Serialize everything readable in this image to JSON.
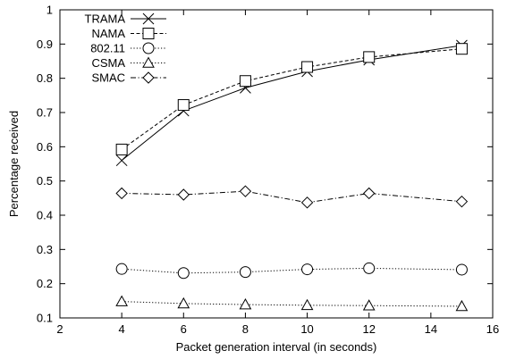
{
  "chart_data": {
    "type": "line",
    "xlabel": "Packet generation interval (in seconds)",
    "ylabel": "Percentage received",
    "xlim": [
      2,
      16
    ],
    "ylim": [
      0.1,
      1
    ],
    "x_ticks": [
      2,
      4,
      6,
      8,
      10,
      12,
      14,
      16
    ],
    "y_ticks": [
      0.1,
      0.2,
      0.3,
      0.4,
      0.5,
      0.6,
      0.7,
      0.8,
      0.9,
      1
    ],
    "x_tick_labels": [
      "2",
      "4",
      "6",
      "8",
      "10",
      "12",
      "14",
      "16"
    ],
    "y_tick_labels": [
      "0.1",
      "0.2",
      "0.3",
      "0.4",
      "0.5",
      "0.6",
      "0.7",
      "0.8",
      "0.9",
      "1"
    ],
    "x": [
      4,
      6,
      8,
      10,
      12,
      15
    ],
    "grid": false,
    "legend_position": "top-left",
    "series": [
      {
        "name": "TRAMA",
        "marker": "cross",
        "dash": "solid",
        "values": [
          0.56,
          0.705,
          0.772,
          0.82,
          0.854,
          0.896
        ]
      },
      {
        "name": "NAMA",
        "marker": "square",
        "dash": "dashed",
        "values": [
          0.592,
          0.722,
          0.792,
          0.833,
          0.862,
          0.886
        ]
      },
      {
        "name": "802.11",
        "marker": "circle",
        "dash": "dotted",
        "values": [
          0.243,
          0.231,
          0.234,
          0.242,
          0.245,
          0.241
        ]
      },
      {
        "name": "CSMA",
        "marker": "triangle",
        "dash": "dotted",
        "values": [
          0.148,
          0.142,
          0.139,
          0.137,
          0.136,
          0.134
        ]
      },
      {
        "name": "SMAC",
        "marker": "diamond",
        "dash": "dashdot",
        "values": [
          0.464,
          0.46,
          0.47,
          0.437,
          0.464,
          0.44
        ]
      }
    ]
  }
}
